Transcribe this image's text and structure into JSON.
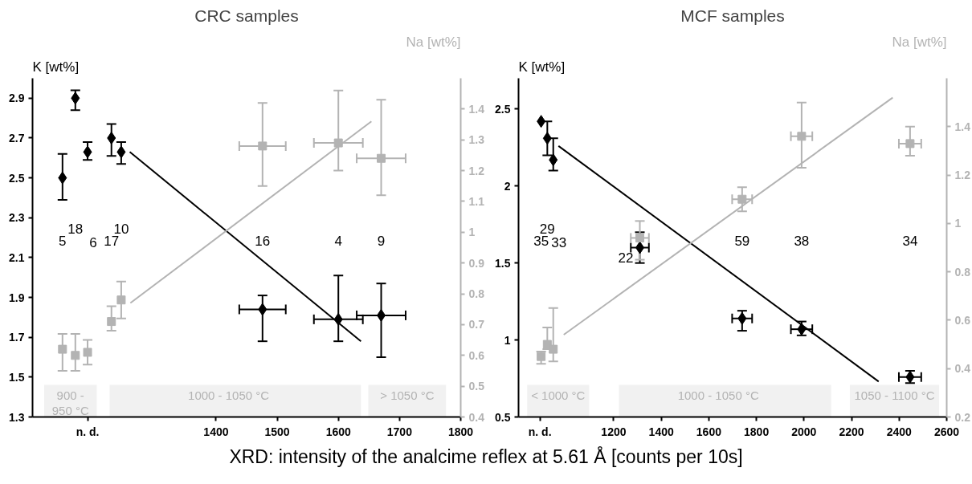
{
  "chart_data": [
    {
      "type": "scatter",
      "title": "CRC samples",
      "xlabel": "XRD: intensity of the analcime reflex at 5.61 Å [counts per 10s]",
      "ylabel": "K [wt%]",
      "y2label": "Na [wt%]",
      "xlim": [
        1100,
        1800
      ],
      "xticks": [
        {
          "value": 1190,
          "label": "n. d."
        },
        1400,
        1500,
        1600,
        1700,
        1800
      ],
      "ylim": [
        1.3,
        3.0
      ],
      "yticks": [
        1.3,
        1.5,
        1.7,
        1.9,
        2.1,
        2.3,
        2.5,
        2.7,
        2.9
      ],
      "y2lim": [
        0.4,
        1.5
      ],
      "y2ticks": [
        0.4,
        0.5,
        0.6,
        0.7,
        0.8,
        0.9,
        1,
        1.1,
        1.2,
        1.3,
        1.4
      ],
      "grid": false,
      "series": [
        {
          "color": "#000000",
          "marker": "diamond",
          "x": [
            1149,
            1170,
            1190,
            1229,
            1245,
            1476,
            1600,
            1670
          ],
          "values": [
            2.5,
            2.9,
            2.63,
            2.7,
            2.63,
            1.84,
            1.79,
            1.81
          ],
          "errors": [
            [
              2.39,
              2.62
            ],
            [
              2.84,
              2.94
            ],
            [
              2.59,
              2.68
            ],
            [
              2.61,
              2.77
            ],
            [
              2.57,
              2.68
            ],
            [
              1.68,
              1.91
            ],
            [
              1.68,
              2.01
            ],
            [
              1.6,
              1.97
            ]
          ],
          "xerrors": [
            null,
            null,
            null,
            null,
            null,
            38,
            40,
            40
          ]
        },
        {
          "color": "#b3b3b3",
          "marker": "square",
          "axis": "y2",
          "x": [
            1149,
            1170,
            1190,
            1229,
            1245,
            1476,
            1600,
            1670
          ],
          "values": [
            0.62,
            0.6,
            0.61,
            0.71,
            0.78,
            1.28,
            1.29,
            1.24
          ],
          "errors": [
            [
              0.55,
              0.67
            ],
            [
              0.55,
              0.67
            ],
            [
              0.57,
              0.65
            ],
            [
              0.68,
              0.76
            ],
            [
              0.72,
              0.84
            ],
            [
              1.15,
              1.42
            ],
            [
              1.2,
              1.46
            ],
            [
              1.12,
              1.43
            ]
          ],
          "xerrors": [
            null,
            null,
            null,
            null,
            null,
            38,
            40,
            40
          ]
        },
        {
          "type": "line",
          "color": "#000000",
          "x": [
            1259,
            1637
          ],
          "values": [
            2.63,
            1.68
          ]
        },
        {
          "type": "line",
          "color": "#b3b3b3",
          "axis": "y2",
          "x": [
            1260,
            1654
          ],
          "values": [
            0.77,
            1.36
          ]
        }
      ],
      "annotations": [
        "5",
        "18",
        "6",
        "17",
        "10",
        "16",
        "4",
        "9"
      ],
      "bands": [
        {
          "axis": "x",
          "from": 1119,
          "to": 1205,
          "label": "900 -\n950 °C",
          "color": "#b3b3b3"
        },
        {
          "axis": "x",
          "from": 1226,
          "to": 1637,
          "label": "1000   -   1050 °C",
          "color": "#b3b3b3"
        },
        {
          "axis": "x",
          "from": 1649,
          "to": 1776,
          "label": "> 1050 °C",
          "color": "#b3b3b3"
        }
      ]
    },
    {
      "type": "scatter",
      "title": "MCF samples",
      "ylabel": "K [wt%]",
      "y2label": "Na [wt%]",
      "xlim": [
        800,
        2600
      ],
      "xticks": [
        {
          "value": 890,
          "label": "n. d."
        },
        1200,
        1400,
        1600,
        1800,
        2000,
        2200,
        2400,
        2600
      ],
      "ylim": [
        0.5,
        2.7
      ],
      "yticks": [
        0.5,
        1,
        1.5,
        2,
        2.5
      ],
      "y2lim": [
        0.2,
        1.6
      ],
      "y2ticks": [
        0.2,
        0.4,
        0.6,
        0.8,
        1,
        1.2,
        1.4
      ],
      "grid": false,
      "series": [
        {
          "color": "#000000",
          "marker": "diamond",
          "x": [
            895,
            921,
            946,
            1310,
            1740,
            1990,
            2446
          ],
          "values": [
            2.42,
            2.31,
            2.17,
            1.6,
            1.14,
            1.07,
            0.76
          ],
          "errors": [
            null,
            [
              2.2,
              2.42
            ],
            [
              2.1,
              2.31
            ],
            [
              1.5,
              1.7
            ],
            [
              1.06,
              1.19
            ],
            [
              1.03,
              1.12
            ],
            [
              0.72,
              0.8
            ]
          ],
          "xerrors": [
            null,
            null,
            null,
            38,
            42,
            45,
            47
          ]
        },
        {
          "color": "#b3b3b3",
          "marker": "square",
          "axis": "y2",
          "x": [
            895,
            921,
            946,
            1310,
            1740,
            1990,
            2446
          ],
          "values": [
            0.45,
            0.5,
            0.48,
            0.94,
            1.1,
            1.36,
            1.33
          ],
          "errors": [
            [
              0.42,
              0.47
            ],
            [
              0.48,
              0.57
            ],
            [
              0.43,
              0.65
            ],
            [
              0.85,
              1.01
            ],
            [
              1.05,
              1.15
            ],
            [
              1.23,
              1.5
            ],
            [
              1.28,
              1.4
            ]
          ],
          "xerrors": [
            null,
            null,
            null,
            38,
            42,
            45,
            47
          ]
        },
        {
          "type": "line",
          "color": "#000000",
          "x": [
            968,
            2314
          ],
          "values": [
            2.26,
            0.73
          ]
        },
        {
          "type": "line",
          "color": "#b3b3b3",
          "axis": "y2",
          "x": [
            990,
            2373
          ],
          "values": [
            0.54,
            1.52
          ]
        }
      ],
      "annotations": [
        "35",
        "29",
        "33",
        "22",
        "59",
        "38",
        "34"
      ],
      "bands": [
        {
          "axis": "x",
          "from": 836,
          "to": 1097,
          "label": "< 1000 °C",
          "color": "#b3b3b3"
        },
        {
          "axis": "x",
          "from": 1222,
          "to": 2114,
          "label": "1000   -   1050 °C",
          "color": "#b3b3b3"
        },
        {
          "axis": "x",
          "from": 2193,
          "to": 2568,
          "label": "1050 - 1100 °C",
          "color": "#b3b3b3"
        }
      ]
    }
  ]
}
